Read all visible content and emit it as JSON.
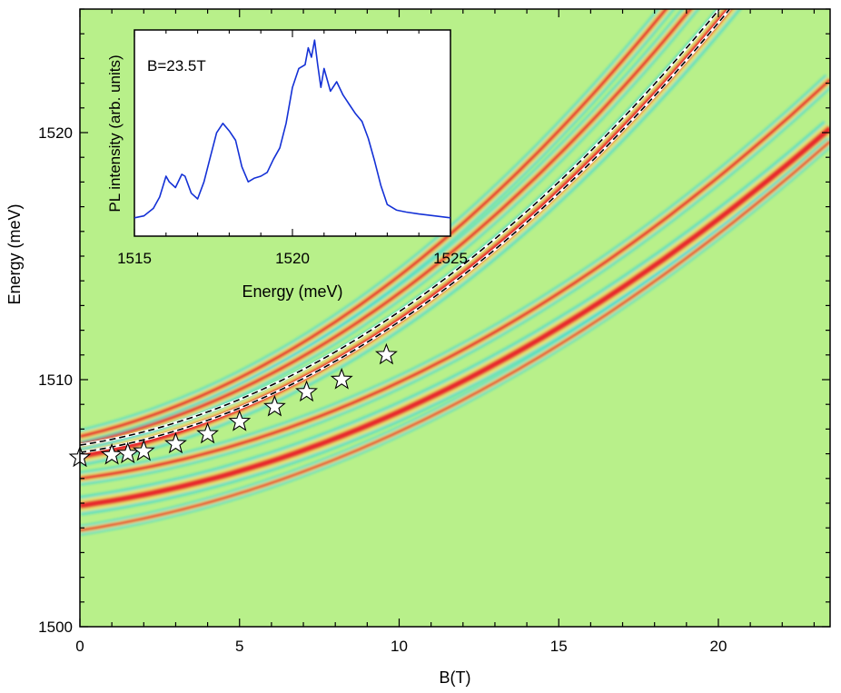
{
  "chart_data": [
    {
      "type": "heatmap",
      "title": "",
      "xlabel": "B(T)",
      "ylabel": "Energy (meV)",
      "xlim": [
        0,
        23.5
      ],
      "ylim": [
        1500,
        1525
      ],
      "x_ticks": [
        0,
        5,
        10,
        15,
        20
      ],
      "y_ticks": [
        1500,
        1510,
        1520
      ],
      "x_tick_labels": [
        "0",
        "5",
        "10",
        "15",
        "20"
      ],
      "y_tick_labels": [
        "1500",
        "1510",
        "1520"
      ],
      "background_color": "#b8f08a",
      "colormap": [
        "#1a3cc8",
        "#23d3e6",
        "#b8f08a",
        "#f2e46a",
        "#e8232a"
      ],
      "bright_lines": [
        {
          "name": "main-exciton-line",
          "e0": 1506.9,
          "b_sq": 0.033,
          "b_lin": 0.22,
          "intensity": "high"
        },
        {
          "name": "upper-line-1",
          "e0": 1507.4,
          "b_sq": 0.034,
          "b_lin": 0.27,
          "intensity": "medium"
        },
        {
          "name": "upper-line-2",
          "e0": 1507.7,
          "b_sq": 0.035,
          "b_lin": 0.3,
          "intensity": "medium"
        },
        {
          "name": "lower-line-1",
          "e0": 1506.0,
          "b_sq": 0.022,
          "b_lin": 0.17,
          "intensity": "medium"
        },
        {
          "name": "lower-line-2",
          "e0": 1504.9,
          "b_sq": 0.02,
          "b_lin": 0.18,
          "intensity": "high"
        },
        {
          "name": "lower-line-3",
          "e0": 1503.9,
          "b_sq": 0.02,
          "b_lin": 0.2,
          "intensity": "low"
        }
      ],
      "dashed_fits": [
        {
          "name": "fit-upper",
          "e0": 1507.35,
          "b_sq": 0.034,
          "b_lin": 0.2
        },
        {
          "name": "fit-lower",
          "e0": 1507.05,
          "b_sq": 0.034,
          "b_lin": 0.19
        }
      ],
      "star_points": {
        "name": "stars",
        "x": [
          0.0,
          1.0,
          1.5,
          2.0,
          3.0,
          4.0,
          5.0,
          6.1,
          7.1,
          8.2,
          9.6
        ],
        "y": [
          1506.85,
          1506.95,
          1507.0,
          1507.1,
          1507.4,
          1507.8,
          1508.3,
          1508.9,
          1509.5,
          1510.0,
          1511.0
        ]
      }
    },
    {
      "type": "line",
      "title": "B=23.5T",
      "xlabel": "Energy (meV)",
      "ylabel": "PL intensity (arb. units)",
      "xlim": [
        1515,
        1525
      ],
      "ylim": [
        0,
        1
      ],
      "x_ticks": [
        1515,
        1520,
        1525
      ],
      "x_tick_labels": [
        "1515",
        "1520",
        "1525"
      ],
      "line_color": "#1431d6",
      "series": [
        {
          "name": "PL spectrum",
          "x": [
            1515.0,
            1515.3,
            1515.6,
            1515.8,
            1516.0,
            1516.1,
            1516.3,
            1516.5,
            1516.6,
            1516.8,
            1517.0,
            1517.2,
            1517.4,
            1517.6,
            1517.8,
            1518.0,
            1518.2,
            1518.4,
            1518.6,
            1518.8,
            1519.0,
            1519.2,
            1519.4,
            1519.6,
            1519.8,
            1520.0,
            1520.2,
            1520.4,
            1520.5,
            1520.6,
            1520.7,
            1520.8,
            1520.9,
            1521.0,
            1521.2,
            1521.4,
            1521.6,
            1521.8,
            1522.0,
            1522.2,
            1522.4,
            1522.6,
            1522.8,
            1523.0,
            1523.3,
            1523.6,
            1524.0,
            1524.5,
            1525.0
          ],
          "y": [
            0.03,
            0.04,
            0.08,
            0.14,
            0.25,
            0.22,
            0.19,
            0.26,
            0.25,
            0.16,
            0.13,
            0.22,
            0.35,
            0.48,
            0.53,
            0.49,
            0.44,
            0.3,
            0.22,
            0.24,
            0.25,
            0.27,
            0.34,
            0.4,
            0.53,
            0.72,
            0.82,
            0.84,
            0.93,
            0.88,
            0.97,
            0.84,
            0.72,
            0.82,
            0.7,
            0.75,
            0.68,
            0.63,
            0.58,
            0.54,
            0.45,
            0.33,
            0.2,
            0.1,
            0.07,
            0.06,
            0.05,
            0.04,
            0.03
          ]
        }
      ]
    }
  ]
}
